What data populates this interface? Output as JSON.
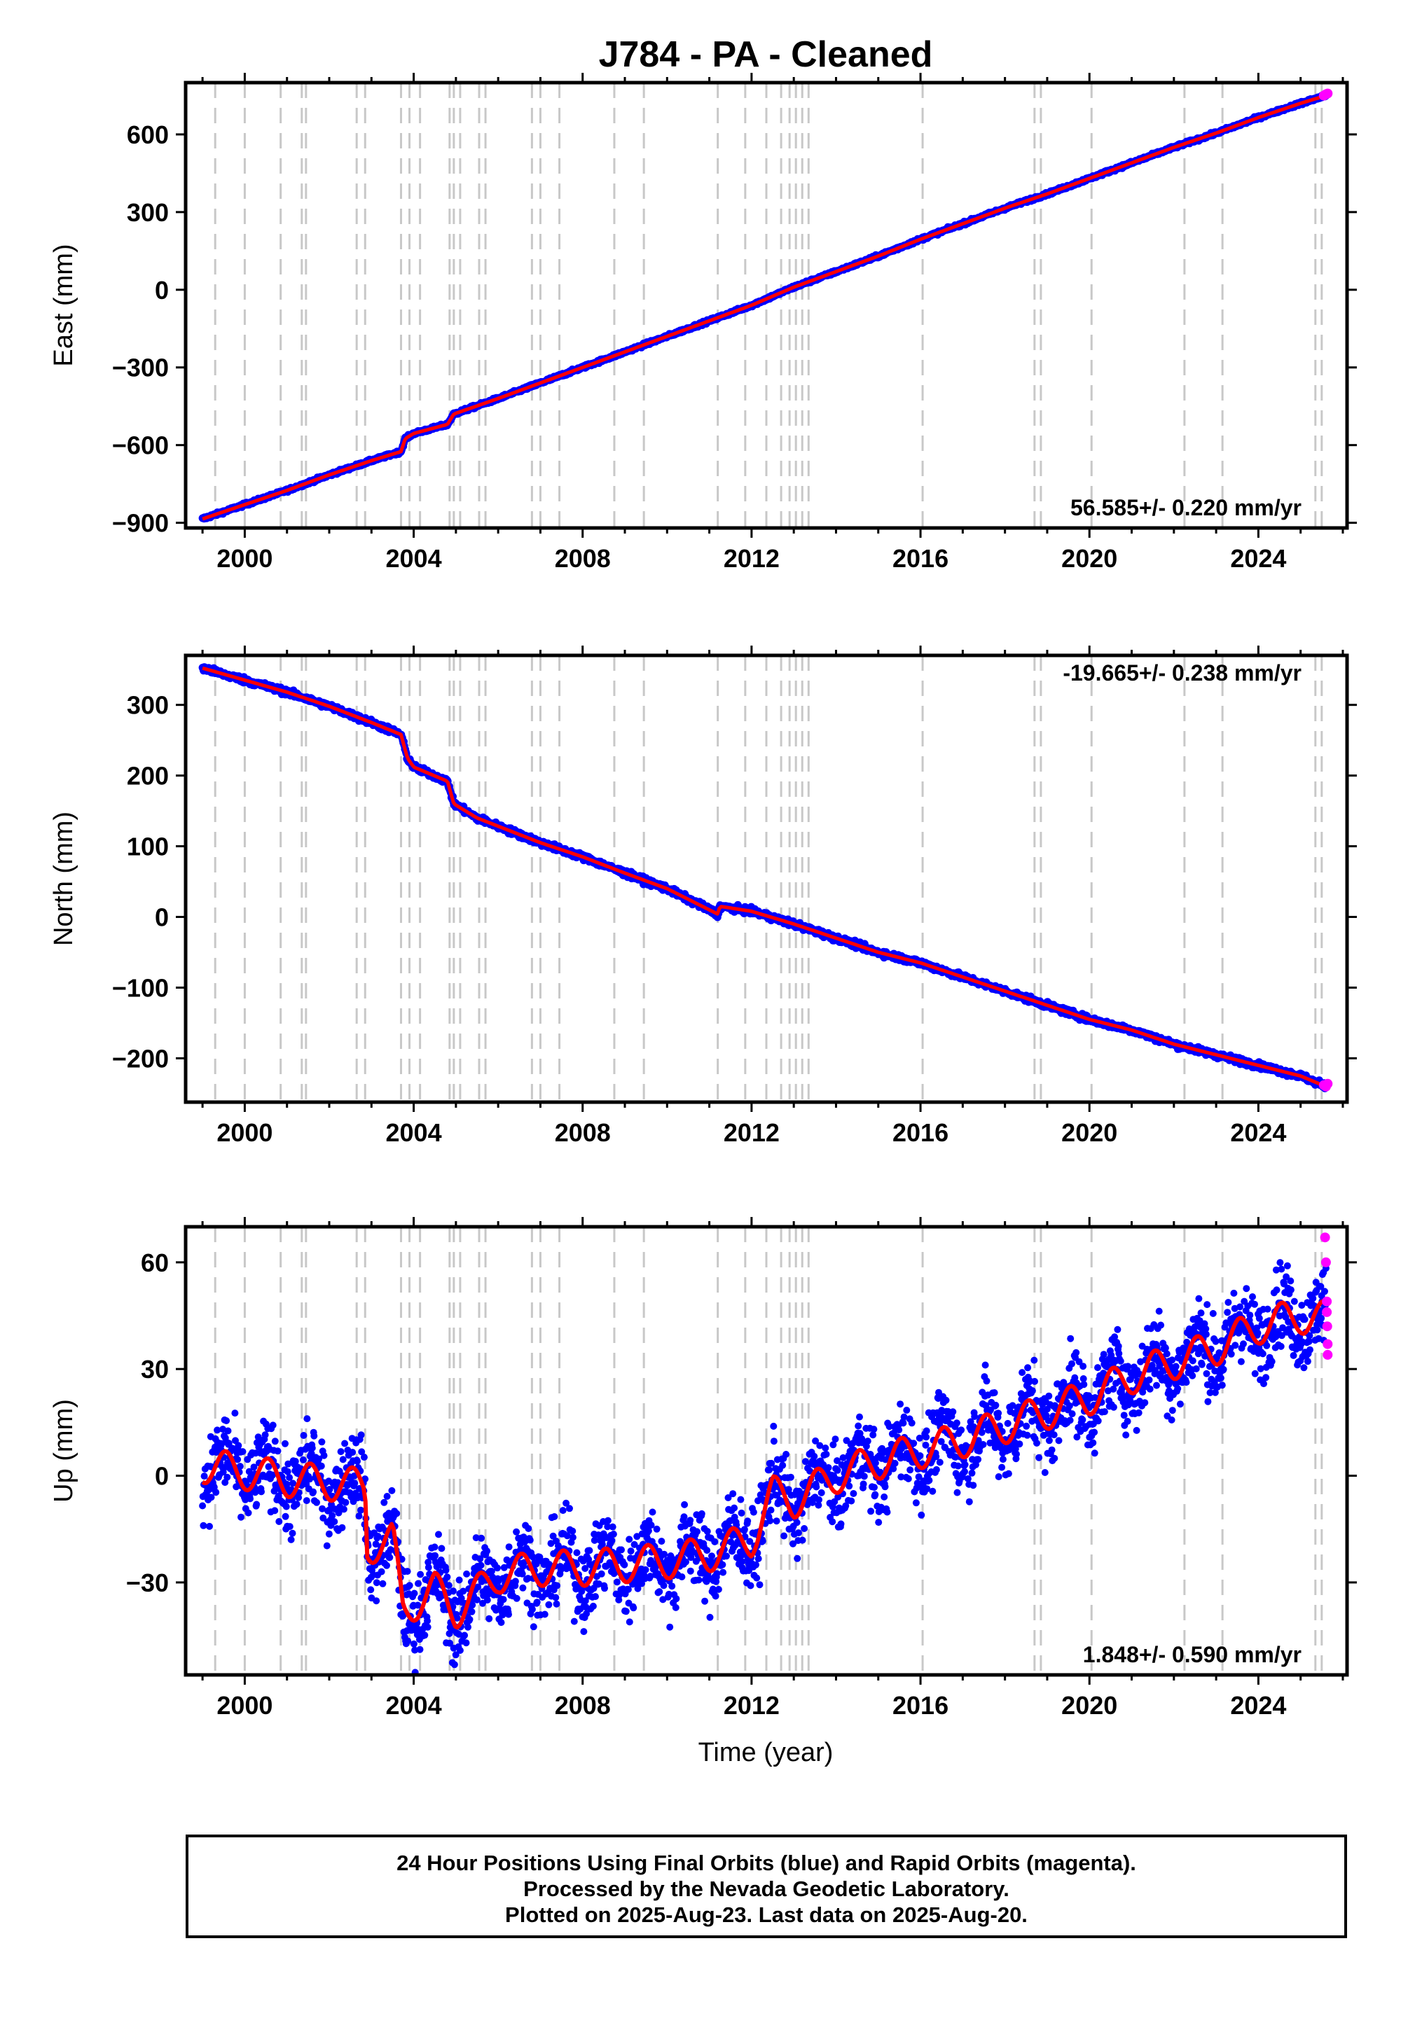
{
  "title": "J784  - PA - Cleaned",
  "xlabel": "Time (year)",
  "footer": {
    "line1": "24 Hour Positions Using Final Orbits (blue) and Rapid Orbits (magenta).",
    "line2": "Processed by the Nevada Geodetic Laboratory.",
    "line3": "Plotted on 2025-Aug-23. Last data on 2025-Aug-20."
  },
  "colors": {
    "final": "#0000ff",
    "rapid": "#ff00ff",
    "model": "#ff0000",
    "event_lines": "#c8c8c8"
  },
  "event_years": [
    1999.3,
    2000.0,
    2000.85,
    2001.35,
    2001.45,
    2002.65,
    2002.85,
    2003.7,
    2003.9,
    2004.15,
    2004.85,
    2004.95,
    2005.1,
    2005.55,
    2005.7,
    2006.8,
    2007.0,
    2007.45,
    2008.75,
    2009.45,
    2011.2,
    2011.85,
    2012.35,
    2012.7,
    2012.9,
    2013.05,
    2013.2,
    2013.35,
    2016.05,
    2018.7,
    2018.85,
    2020.05,
    2022.25,
    2023.15,
    2025.35,
    2025.5
  ],
  "chart_data": [
    {
      "type": "scatter",
      "component": "east",
      "ylabel": "East (mm)",
      "xlim": [
        1998.6,
        2026.1
      ],
      "ylim": [
        -920,
        800
      ],
      "xticks": [
        2000,
        2004,
        2008,
        2012,
        2016,
        2020,
        2024
      ],
      "yticks": [
        -900,
        -600,
        -300,
        0,
        300,
        600
      ],
      "ytick_labels": [
        "−900",
        "−600",
        "−300",
        "0",
        "300",
        "600"
      ],
      "rate_label": "56.585+/- 0.220 mm/yr",
      "rate_position": "bottom-right",
      "series": [
        {
          "name": "final",
          "x": [
            1999.0,
            2000.0,
            2001.0,
            2002.0,
            2003.0,
            2003.7,
            2003.8,
            2004.0,
            2004.8,
            2004.95,
            2006.0,
            2007.0,
            2008.0,
            2009.0,
            2010.0,
            2011.0,
            2012.0,
            2013.0,
            2014.0,
            2015.0,
            2016.0,
            2017.0,
            2018.0,
            2019.0,
            2020.0,
            2021.0,
            2022.0,
            2023.0,
            2024.0,
            2025.0,
            2025.6
          ],
          "y": [
            -885,
            -830,
            -775,
            -715,
            -660,
            -625,
            -575,
            -555,
            -520,
            -480,
            -420,
            -360,
            -300,
            -240,
            -180,
            -120,
            -60,
            10,
            70,
            130,
            195,
            255,
            315,
            370,
            430,
            490,
            550,
            605,
            665,
            720,
            750
          ],
          "noise": 4
        },
        {
          "name": "rapid",
          "x": [
            2025.55,
            2025.6,
            2025.64
          ],
          "y": [
            750,
            755,
            758
          ]
        }
      ]
    },
    {
      "type": "scatter",
      "component": "north",
      "ylabel": "North (mm)",
      "xlim": [
        1998.6,
        2026.1
      ],
      "ylim": [
        -262,
        370
      ],
      "xticks": [
        2000,
        2004,
        2008,
        2012,
        2016,
        2020,
        2024
      ],
      "yticks": [
        -200,
        -100,
        0,
        100,
        200,
        300
      ],
      "ytick_labels": [
        "−200",
        "−100",
        "0",
        "100",
        "200",
        "300"
      ],
      "rate_label": "-19.665+/- 0.238 mm/yr",
      "rate_position": "top-right",
      "series": [
        {
          "name": "final",
          "x": [
            1999.0,
            2000.0,
            2001.0,
            2002.0,
            2003.0,
            2003.7,
            2003.85,
            2004.0,
            2004.8,
            2004.95,
            2005.5,
            2007.0,
            2008.0,
            2009.0,
            2010.0,
            2011.2,
            2011.25,
            2012.0,
            2013.0,
            2014.0,
            2015.0,
            2016.0,
            2017.0,
            2018.0,
            2019.0,
            2020.0,
            2021.0,
            2022.0,
            2023.0,
            2024.0,
            2025.0,
            2025.6
          ],
          "y": [
            352,
            335,
            318,
            298,
            275,
            258,
            225,
            212,
            192,
            160,
            140,
            105,
            85,
            62,
            40,
            4,
            15,
            8,
            -10,
            -30,
            -50,
            -65,
            -85,
            -105,
            -125,
            -145,
            -160,
            -180,
            -195,
            -210,
            -225,
            -240
          ],
          "noise": 3
        },
        {
          "name": "rapid",
          "x": [
            2025.55,
            2025.6,
            2025.64
          ],
          "y": [
            -238,
            -240,
            -236
          ]
        }
      ]
    },
    {
      "type": "scatter",
      "component": "up",
      "ylabel": "Up (mm)",
      "xlabel": "Time (year)",
      "xlim": [
        1998.6,
        2026.1
      ],
      "ylim": [
        -56,
        70
      ],
      "xticks": [
        2000,
        2004,
        2008,
        2012,
        2016,
        2020,
        2024
      ],
      "yticks": [
        -30,
        0,
        30,
        60
      ],
      "ytick_labels": [
        "−30",
        "0",
        "30",
        "60"
      ],
      "rate_label": "1.848+/- 0.590 mm/yr",
      "rate_position": "bottom-right",
      "series": [
        {
          "name": "final",
          "x": [
            1999.0,
            2000.0,
            2001.0,
            2002.0,
            2002.85,
            2002.9,
            2003.5,
            2003.75,
            2004.5,
            2005.0,
            2006.0,
            2007.0,
            2008.0,
            2009.0,
            2010.0,
            2011.0,
            2012.0,
            2012.5,
            2013.0,
            2014.0,
            2015.0,
            2016.0,
            2017.0,
            2018.0,
            2019.0,
            2020.0,
            2021.0,
            2022.0,
            2023.0,
            2024.0,
            2025.0,
            2025.6
          ],
          "y": [
            3,
            1,
            -1,
            -2,
            -3,
            -20,
            -18,
            -38,
            -32,
            -38,
            -28,
            -26,
            -26,
            -25,
            -24,
            -22,
            -18,
            -5,
            -7,
            0,
            4,
            7,
            10,
            14,
            18,
            22,
            28,
            32,
            36,
            42,
            45,
            44
          ],
          "noise": 8,
          "seasonal_amplitude": 5
        },
        {
          "name": "rapid",
          "x": [
            2025.58,
            2025.6,
            2025.62,
            2025.62,
            2025.63,
            2025.64,
            2025.64
          ],
          "y": [
            67,
            60,
            49,
            46,
            42,
            37,
            34
          ]
        }
      ]
    }
  ]
}
